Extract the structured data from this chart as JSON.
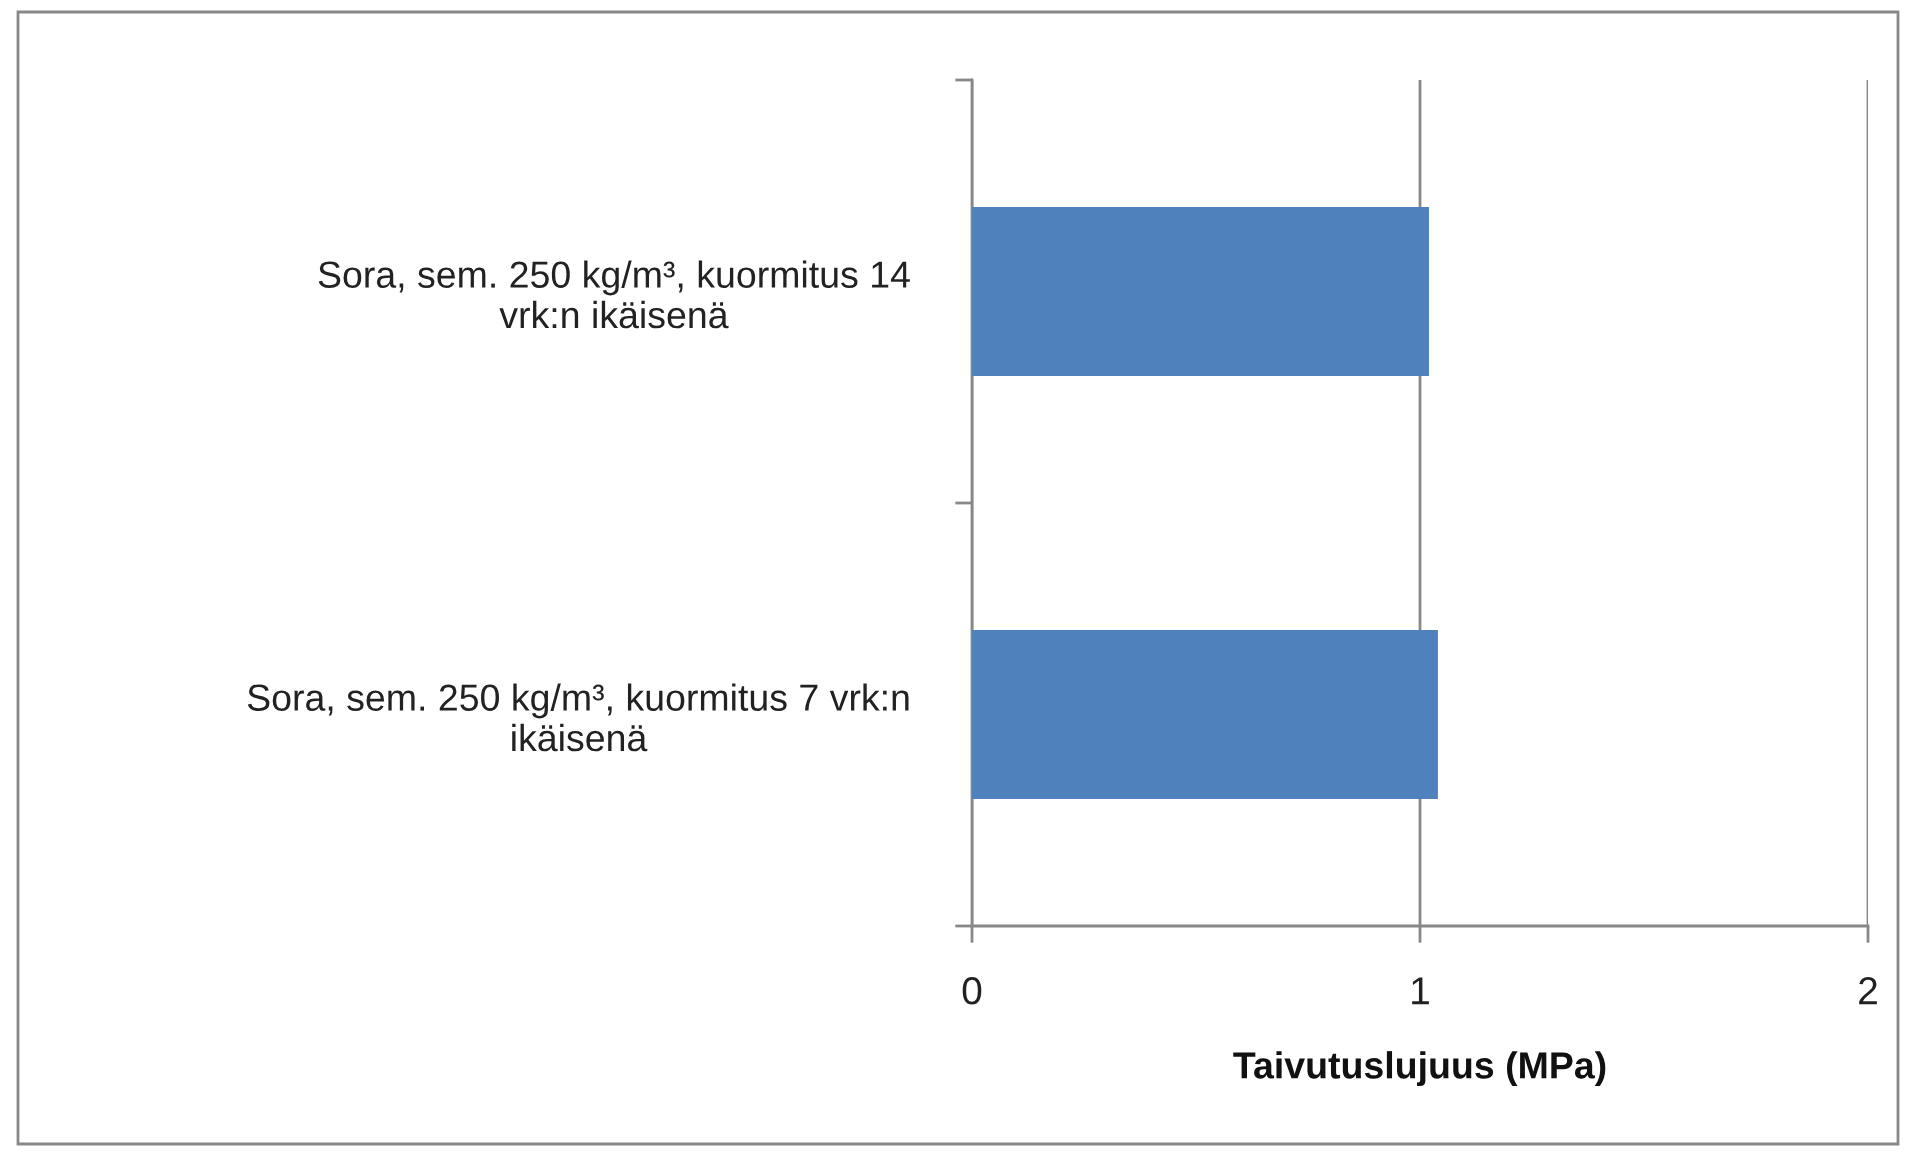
{
  "chart_data": {
    "type": "bar",
    "orientation": "horizontal",
    "categories": [
      "Sora, sem. 250 kg/m³, kuormitus 14\nvrk:n ikäisenä",
      "Sora, sem. 250 kg/m³, kuormitus 7 vrk:n\nikäisenä"
    ],
    "values": [
      1.02,
      1.04
    ],
    "color": "#4f81bd",
    "xlabel": "Taivutuslujuus (MPa)",
    "xlim": [
      0,
      2
    ],
    "xticks": [
      0,
      1,
      2
    ],
    "grid": "x"
  }
}
